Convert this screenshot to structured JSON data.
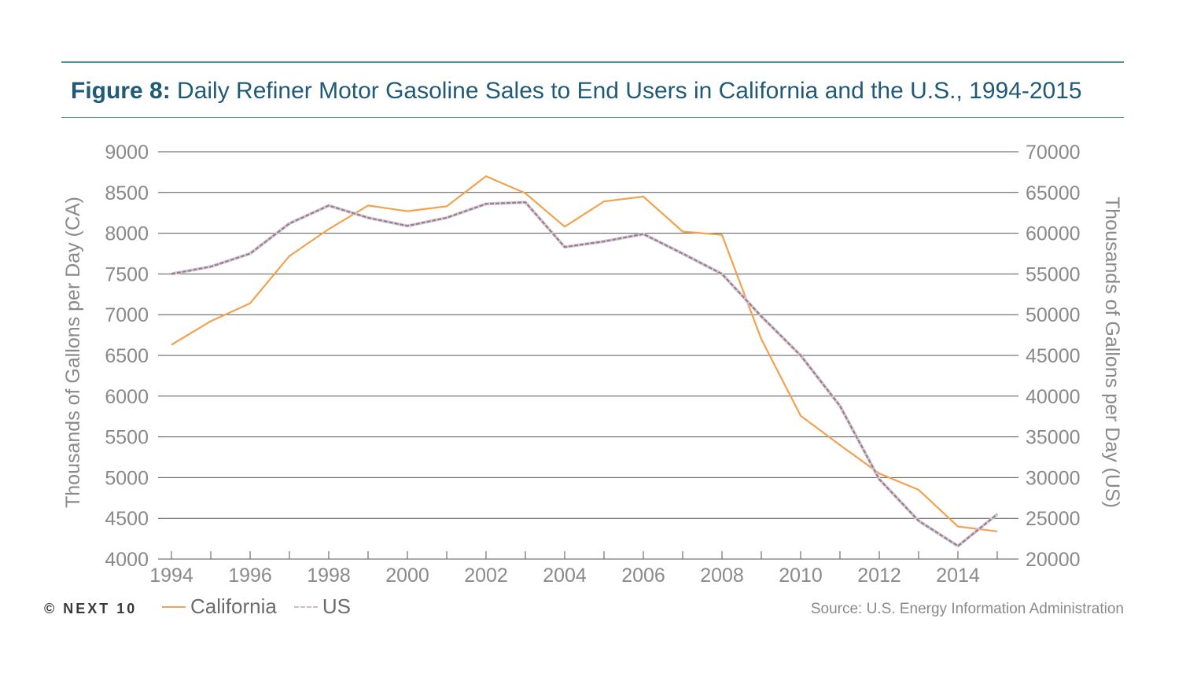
{
  "header": {
    "figure_label": "Figure 8:",
    "title_text": " Daily Refiner Motor Gasoline Sales to End Users in California and the U.S., 1994-2015"
  },
  "footer": {
    "brand": "© NEXT 10",
    "source": "Source: U.S. Energy Information Administration"
  },
  "colors": {
    "california": "#f2a24f",
    "us": "#9a7e92",
    "grid": "#555555",
    "axis_text": "#8a8a8a",
    "title": "#1f5a76",
    "rule": "#5b8da3"
  },
  "chart_data": {
    "type": "line",
    "title": "Daily Refiner Motor Gasoline Sales to End Users in California and the U.S., 1994-2015",
    "x": [
      1994,
      1995,
      1996,
      1997,
      1998,
      1999,
      2000,
      2001,
      2002,
      2003,
      2004,
      2005,
      2006,
      2007,
      2008,
      2009,
      2010,
      2011,
      2012,
      2013,
      2014,
      2015
    ],
    "x_ticks": [
      "1994",
      "1996",
      "1998",
      "2000",
      "2002",
      "2004",
      "2006",
      "2008",
      "2010",
      "2012",
      "2014"
    ],
    "xlim": [
      1994,
      2015
    ],
    "ylabel_left": "Thousands of Gallons per Day (CA)",
    "ylabel_right": "Thousands of Gallons per Day (US)",
    "ylim_left": [
      4000,
      9000
    ],
    "ylim_right": [
      20000,
      70000
    ],
    "y_ticks_left": [
      "9000",
      "8500",
      "8000",
      "7500",
      "7000",
      "6500",
      "6000",
      "5500",
      "5000",
      "4500",
      "4000"
    ],
    "y_ticks_right": [
      "70000",
      "65000",
      "60000",
      "55000",
      "50000",
      "45000",
      "40000",
      "35000",
      "30000",
      "25000",
      "20000"
    ],
    "grid": true,
    "legend_position": "bottom-left",
    "series": [
      {
        "name": "California",
        "axis": "left",
        "style": "solid",
        "values": [
          6630,
          6920,
          7140,
          7720,
          8050,
          8340,
          8270,
          8330,
          8700,
          8490,
          8080,
          8390,
          8450,
          8020,
          7980,
          6700,
          5760,
          5400,
          5050,
          4850,
          4400,
          4340
        ]
      },
      {
        "name": "US",
        "axis": "right",
        "style": "dashed",
        "values": [
          55000,
          55900,
          57500,
          61200,
          63400,
          61900,
          60900,
          61900,
          63600,
          63800,
          58300,
          59000,
          59900,
          57500,
          55000,
          49800,
          45000,
          38800,
          29800,
          24700,
          21600,
          25500
        ]
      }
    ]
  }
}
